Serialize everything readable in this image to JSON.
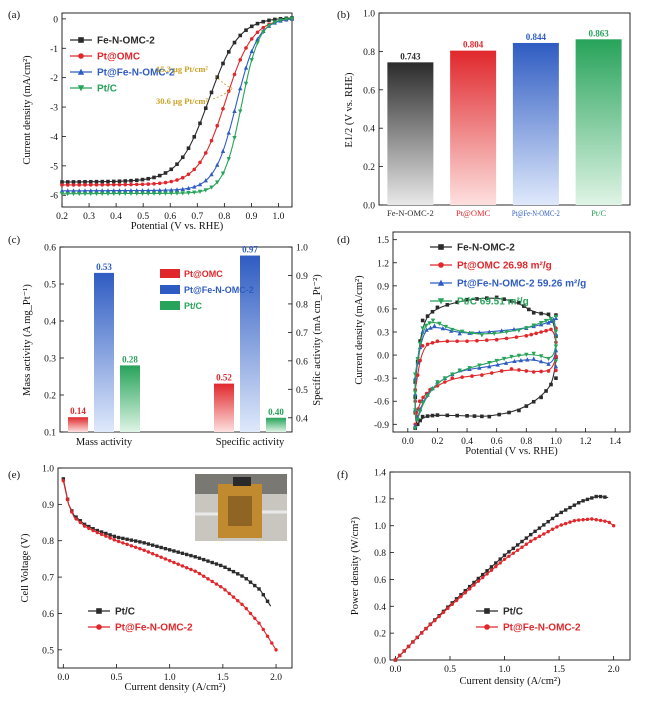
{
  "panel_labels": [
    "(a)",
    "(b)",
    "(c)",
    "(d)",
    "(e)",
    "(f)"
  ],
  "colors": {
    "black": "#2b2b2b",
    "red": "#e0282c",
    "blue": "#2f5cc2",
    "green": "#27a35a",
    "bar_black_light": "#e8e8e8",
    "bar_red_light": "#fde0df",
    "bar_blue_light": "#dfe9fb",
    "bar_green_light": "#dff4e5"
  },
  "chart_data": [
    {
      "id": "a",
      "type": "line",
      "xlabel": "Potential (V vs. RHE)",
      "ylabel": "Current density (mA/cm²)",
      "xlim": [
        0.2,
        1.05
      ],
      "ylim": [
        -6.4,
        0.2
      ],
      "xticks": [
        "0.2",
        "0.3",
        "0.4",
        "0.5",
        "0.6",
        "0.7",
        "0.8",
        "0.9",
        "1.0"
      ],
      "yticks": [
        "-6",
        "-5",
        "-4",
        "-3",
        "-2",
        "-1",
        "0"
      ],
      "annotations": [
        "15.3 μg Pt/cm²",
        "30.6 μg Pt/cm²"
      ],
      "series": [
        {
          "name": "Fe-N-OMC-2",
          "color": "#2b2b2b",
          "marker": "square",
          "limit": -5.55,
          "half_wave": 0.743,
          "width": 0.055
        },
        {
          "name": "Pt@OMC",
          "color": "#e0282c",
          "marker": "circle",
          "limit": -5.65,
          "half_wave": 0.804,
          "width": 0.05
        },
        {
          "name": "Pt@Fe-N-OMC-2",
          "color": "#2f5cc2",
          "marker": "triangle-up",
          "limit": -5.85,
          "half_wave": 0.844,
          "width": 0.04
        },
        {
          "name": "Pt/C",
          "color": "#27a35a",
          "marker": "triangle-down",
          "limit": -5.95,
          "half_wave": 0.863,
          "width": 0.033
        }
      ]
    },
    {
      "id": "b",
      "type": "bar",
      "ylabel": "E1/2 (V vs. RHE)",
      "ylim": [
        0,
        1.0
      ],
      "yticks": [
        "0.0",
        "0.2",
        "0.4",
        "0.6",
        "0.8",
        "1.0"
      ],
      "categories": [
        "Fe-N-OMC-2",
        "Pt@OMC",
        "Pt@Fe-N-OMC-2",
        "Pt/C"
      ],
      "values": [
        0.743,
        0.804,
        0.844,
        0.863
      ],
      "value_labels": [
        "0.743",
        "0.804",
        "0.844",
        "0.863"
      ]
    },
    {
      "id": "c",
      "type": "bar",
      "ylabel_left": "Mass activity (A mg_Pt⁻¹)",
      "ylabel_right": "Specific activity (mA cm_Pt⁻²)",
      "ylim_left": [
        0.1,
        0.6
      ],
      "ylim_right": [
        0.35,
        1.0
      ],
      "yticks_left": [
        "0.1",
        "0.2",
        "0.3",
        "0.4",
        "0.5",
        "0.6"
      ],
      "yticks_right": [
        "0.4",
        "0.5",
        "0.6",
        "0.7",
        "0.8",
        "0.9",
        "1.0"
      ],
      "categories": [
        "Mass activity",
        "Specific activity"
      ],
      "series": [
        {
          "name": "Pt@OMC",
          "values": [
            0.14,
            0.52
          ],
          "labels": [
            "0.14",
            "0.52"
          ]
        },
        {
          "name": "Pt@Fe-N-OMC-2",
          "values": [
            0.53,
            0.97
          ],
          "labels": [
            "0.53",
            "0.97"
          ]
        },
        {
          "name": "Pt/C",
          "values": [
            0.28,
            0.4
          ],
          "labels": [
            "0.28",
            "0.40"
          ]
        }
      ]
    },
    {
      "id": "d",
      "type": "line",
      "xlabel": "Potential (V vs. RHE)",
      "ylabel": "Current density (mA/cm²)",
      "xlim": [
        -0.1,
        1.5
      ],
      "ylim": [
        -1.0,
        1.6
      ],
      "xticks": [
        "0.0",
        "0.2",
        "0.4",
        "0.6",
        "0.8",
        "1.0",
        "1.2",
        "1.4"
      ],
      "yticks": [
        "-0.9",
        "-0.6",
        "-0.3",
        "0.0",
        "0.3",
        "0.6",
        "0.9",
        "1.2",
        "1.5"
      ],
      "series": [
        {
          "name": "Fe-N-OMC-2",
          "label": "Fe-N-OMC-2",
          "color": "#2b2b2b",
          "marker": "square",
          "ecsa": ""
        },
        {
          "name": "Pt@OMC",
          "label": "Pt@OMC  26.98 m²/g",
          "color": "#e0282c",
          "marker": "circle",
          "ecsa": "26.98 m²/g"
        },
        {
          "name": "Pt@Fe-N-OMC-2",
          "label": "Pt@Fe-N-OMC-2  59.26 m²/g",
          "color": "#2f5cc2",
          "marker": "triangle-up",
          "ecsa": "59.26 m²/g"
        },
        {
          "name": "Pt/C",
          "label": "Pt/C  69.51 m²/g",
          "color": "#27a35a",
          "marker": "triangle-down",
          "ecsa": "69.51 m²/g"
        }
      ]
    },
    {
      "id": "e",
      "type": "line",
      "xlabel": "Current density (A/cm²)",
      "ylabel": "Cell Voltage (V)",
      "xlim": [
        -0.05,
        2.15
      ],
      "ylim": [
        0.45,
        1.0
      ],
      "xticks": [
        "0.0",
        "0.5",
        "1.0",
        "1.5",
        "2.0"
      ],
      "yticks": [
        "0.5",
        "0.6",
        "0.7",
        "0.8",
        "0.9",
        "1.0"
      ],
      "series": [
        {
          "name": "Pt/C",
          "color": "#2b2b2b",
          "marker": "square",
          "x": [
            0.0,
            0.05,
            0.1,
            0.2,
            0.3,
            0.5,
            0.75,
            1.0,
            1.25,
            1.5,
            1.7,
            1.85,
            1.95
          ],
          "y": [
            0.97,
            0.9,
            0.87,
            0.845,
            0.83,
            0.81,
            0.795,
            0.775,
            0.755,
            0.73,
            0.7,
            0.665,
            0.62
          ]
        },
        {
          "name": "Pt@Fe-N-OMC-2",
          "color": "#e0282c",
          "marker": "circle",
          "x": [
            0.0,
            0.05,
            0.1,
            0.2,
            0.3,
            0.5,
            0.75,
            1.0,
            1.25,
            1.5,
            1.7,
            1.85,
            2.0
          ],
          "y": [
            0.965,
            0.9,
            0.865,
            0.84,
            0.825,
            0.8,
            0.775,
            0.745,
            0.715,
            0.67,
            0.62,
            0.57,
            0.5
          ]
        }
      ]
    },
    {
      "id": "f",
      "type": "line",
      "xlabel": "Current density (A/cm²)",
      "ylabel": "Power density (W/cm²)",
      "xlim": [
        -0.05,
        2.15
      ],
      "ylim": [
        0.0,
        1.4
      ],
      "xticks": [
        "0.0",
        "0.5",
        "1.0",
        "1.5",
        "2.0"
      ],
      "yticks": [
        "0.0",
        "0.2",
        "0.4",
        "0.6",
        "0.8",
        "1.0",
        "1.2",
        "1.4"
      ],
      "series": [
        {
          "name": "Pt/C",
          "color": "#2b2b2b",
          "marker": "square",
          "x": [
            0.0,
            0.25,
            0.5,
            0.75,
            1.0,
            1.25,
            1.5,
            1.7,
            1.85,
            1.95
          ],
          "y": [
            0.0,
            0.21,
            0.41,
            0.6,
            0.78,
            0.94,
            1.09,
            1.18,
            1.22,
            1.21
          ]
        },
        {
          "name": "Pt@Fe-N-OMC-2",
          "color": "#e0282c",
          "marker": "circle",
          "x": [
            0.0,
            0.25,
            0.5,
            0.75,
            1.0,
            1.25,
            1.5,
            1.65,
            1.8,
            1.95,
            2.0
          ],
          "y": [
            0.0,
            0.21,
            0.4,
            0.58,
            0.75,
            0.89,
            1.0,
            1.04,
            1.05,
            1.03,
            1.0
          ]
        }
      ]
    }
  ]
}
